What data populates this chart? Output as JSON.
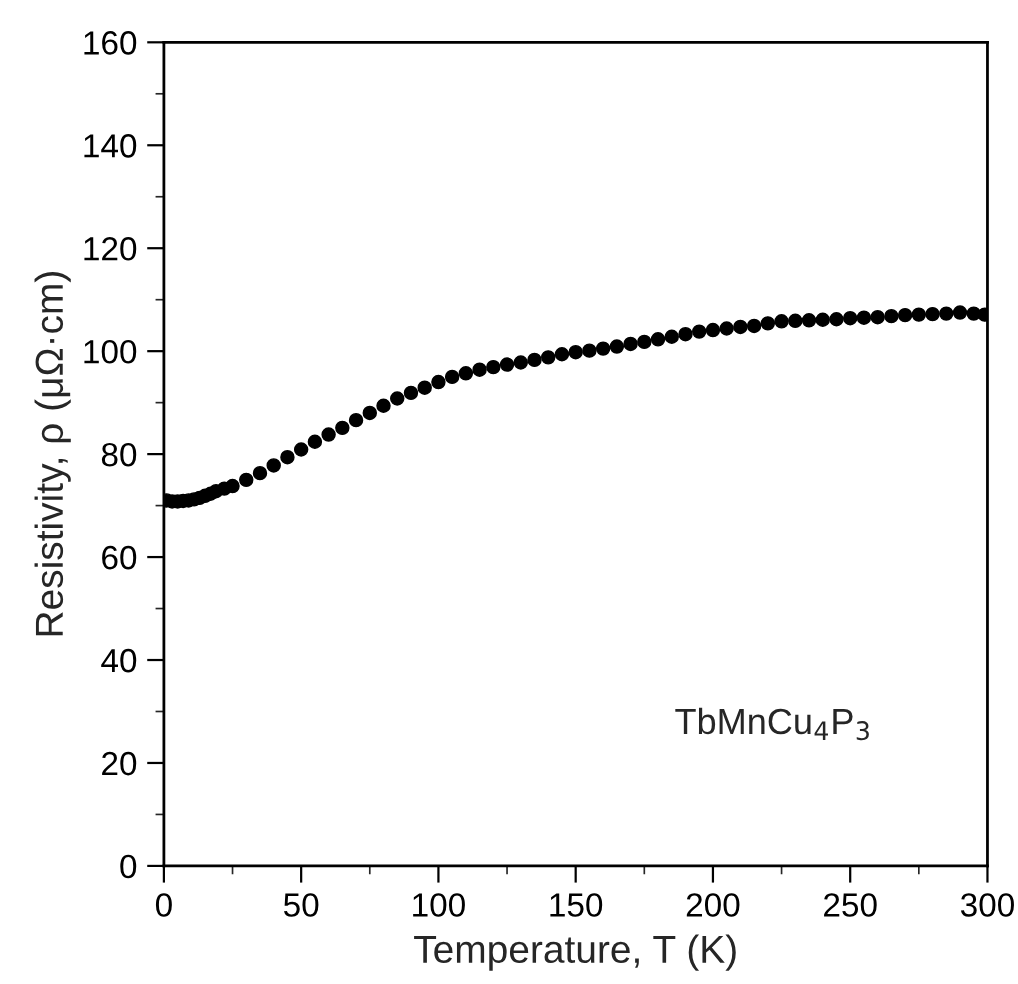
{
  "chart_data": {
    "type": "scatter",
    "xlabel": "Temperature, T (K)",
    "ylabel": "Resistivity, ρ (μΩ·cm)",
    "annotations": [
      "TbMnCu$_{4}$P$_{3}$"
    ],
    "xlim": [
      0,
      300
    ],
    "ylim": [
      0,
      160
    ],
    "xticks": [
      0,
      50,
      100,
      150,
      200,
      250,
      300
    ],
    "yticks": [
      0,
      20,
      40,
      60,
      80,
      100,
      120,
      140,
      160
    ],
    "marker": "circle",
    "grid": false,
    "legend": false,
    "series": [
      {
        "color": "#000000",
        "x": [
          1,
          3,
          5,
          7,
          9,
          11,
          13,
          15,
          17,
          19,
          22,
          25,
          30,
          35,
          40,
          45,
          50,
          55,
          60,
          65,
          70,
          75,
          80,
          85,
          90,
          95,
          100,
          105,
          110,
          115,
          120,
          125,
          130,
          135,
          140,
          145,
          150,
          155,
          160,
          165,
          170,
          175,
          180,
          185,
          190,
          195,
          200,
          205,
          210,
          215,
          220,
          225,
          230,
          235,
          240,
          245,
          250,
          255,
          260,
          265,
          270,
          275,
          280,
          285,
          290,
          295,
          299
        ],
        "values": [
          71.0,
          70.8,
          70.8,
          70.9,
          71.0,
          71.2,
          71.5,
          71.9,
          72.3,
          72.8,
          73.3,
          73.8,
          75.0,
          76.3,
          77.8,
          79.4,
          80.9,
          82.4,
          83.8,
          85.1,
          86.6,
          88.0,
          89.4,
          90.8,
          91.9,
          92.9,
          94.0,
          95.0,
          95.7,
          96.4,
          96.9,
          97.4,
          97.8,
          98.3,
          98.8,
          99.4,
          99.8,
          100.1,
          100.5,
          100.9,
          101.4,
          101.8,
          102.3,
          102.8,
          103.3,
          103.8,
          104.1,
          104.4,
          104.7,
          104.9,
          105.4,
          105.8,
          105.9,
          106.0,
          106.1,
          106.2,
          106.4,
          106.5,
          106.6,
          106.8,
          107.0,
          107.1,
          107.2,
          107.3,
          107.5,
          107.3,
          107.1
        ]
      }
    ]
  }
}
